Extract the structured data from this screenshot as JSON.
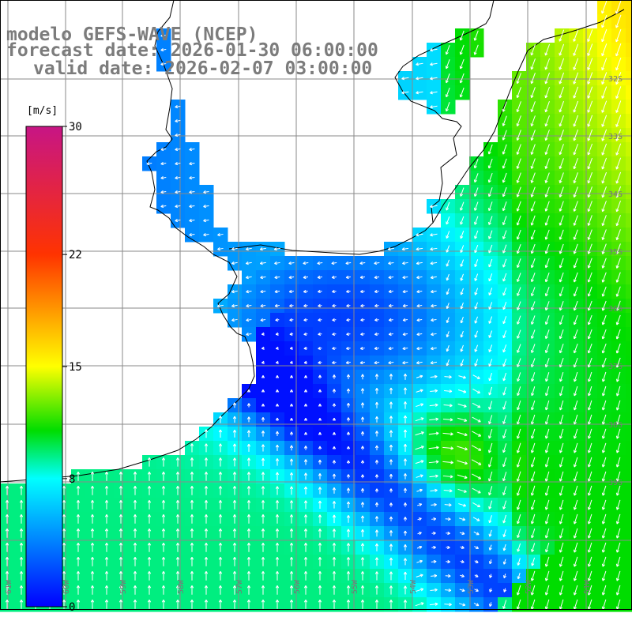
{
  "map": {
    "title_lines": [
      "modelo GEFS-WAVE (NCEP)",
      "forecast date: 2026-01-30 06:00:00",
      "valid date: 2026-02-07 03:00:00"
    ],
    "region": {
      "lon_range": [
        -61,
        -50
      ],
      "lat_range": [
        -39,
        -28
      ]
    },
    "longitude_labels": [
      "61W",
      "60W",
      "59W",
      "58W",
      "57W",
      "56W",
      "55W",
      "54W",
      "53W",
      "52W",
      "51W"
    ],
    "latitude_labels": [
      "32S",
      "33S",
      "34S",
      "35S",
      "36S",
      "37S",
      "38S",
      "39S"
    ],
    "grid_lines": true,
    "land_color": "#ffffff",
    "coastline_color": "#000000",
    "arrow_color": "#ffffff"
  },
  "colorbar": {
    "unit": "[m/s]",
    "ticks": [
      {
        "label": "30",
        "value": 30
      },
      {
        "label": "22",
        "value": 22
      },
      {
        "label": "15",
        "value": 15
      },
      {
        "label": "8",
        "value": 8
      },
      {
        "label": "0",
        "value": 0
      }
    ],
    "min": 0,
    "max": 30,
    "gradient": [
      {
        "value": 0,
        "color": "#0000ff"
      },
      {
        "value": 8,
        "color": "#00ffff"
      },
      {
        "value": 11,
        "color": "#00dd00"
      },
      {
        "value": 15,
        "color": "#ffff00"
      },
      {
        "value": 22,
        "color": "#ff3300"
      },
      {
        "value": 30,
        "color": "#c71585"
      }
    ]
  },
  "wind_field": {
    "regions": [
      {
        "name": "northeast-high-wind",
        "speed_range": [
          11,
          14
        ],
        "direction": "toward SSW"
      },
      {
        "name": "la-plata-estuary",
        "speed_range": [
          2,
          5
        ],
        "direction": "toward SW"
      },
      {
        "name": "southwest-shelf",
        "speed_range": [
          8,
          11
        ],
        "direction": "toward N"
      },
      {
        "name": "central-low-wind-band",
        "speed_range": [
          2,
          5
        ],
        "direction": "variable"
      }
    ]
  }
}
